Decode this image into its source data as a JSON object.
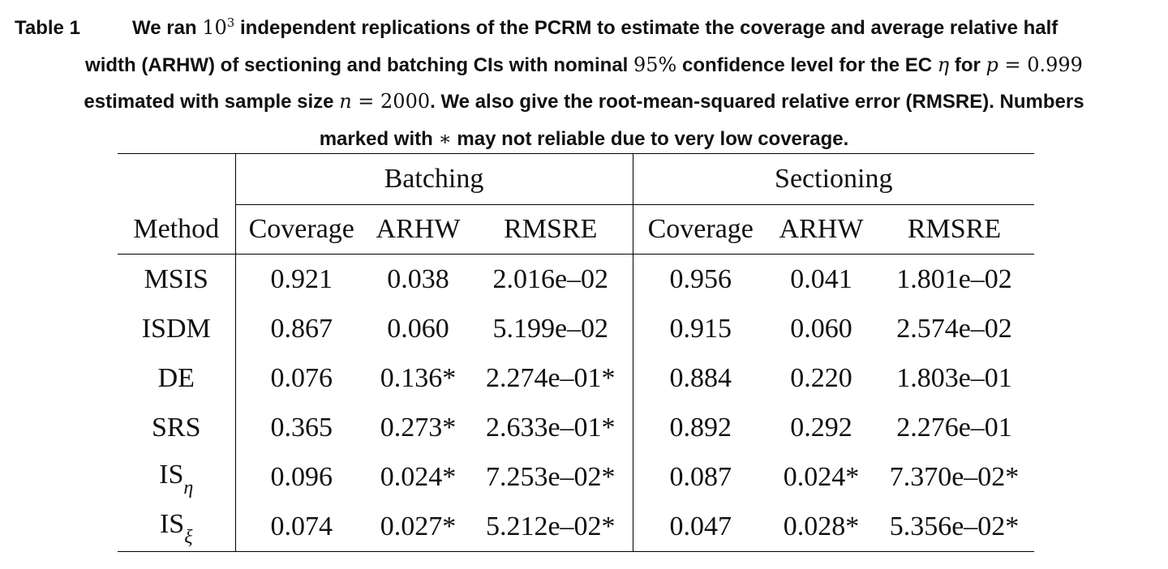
{
  "caption": {
    "label": "Table 1",
    "lines": [
      [
        {
          "t": "We ran ",
          "k": "b"
        },
        {
          "t": "10",
          "k": "m"
        },
        {
          "t": "3",
          "k": "sup"
        },
        {
          "t": " independent replications of the PCRM to estimate the coverage and average relative half",
          "k": "b"
        }
      ],
      [
        {
          "t": "width (ARHW) of sectioning and batching CIs with nominal ",
          "k": "b"
        },
        {
          "t": "95%",
          "k": "m"
        },
        {
          "t": " confidence level for the EC ",
          "k": "b"
        },
        {
          "t": "η",
          "k": "mi"
        },
        {
          "t": " for ",
          "k": "b"
        },
        {
          "t": "p",
          "k": "mi"
        },
        {
          "t": " = 0.999",
          "k": "m"
        }
      ],
      [
        {
          "t": "estimated with sample size ",
          "k": "b"
        },
        {
          "t": "n",
          "k": "mi"
        },
        {
          "t": " = 2000",
          "k": "m"
        },
        {
          "t": ". We also give the root-mean-squared relative error (RMSRE). Numbers",
          "k": "b"
        }
      ],
      [
        {
          "t": "marked with ",
          "k": "b"
        },
        {
          "t": "∗",
          "k": "m"
        },
        {
          "t": " may not reliable due to very low coverage.",
          "k": "b"
        }
      ]
    ]
  },
  "table": {
    "groups": [
      "Batching",
      "Sectioning"
    ],
    "method_header": "Method",
    "columns": [
      "Coverage",
      "ARHW",
      "RMSRE",
      "Coverage",
      "ARHW",
      "RMSRE"
    ],
    "rows": [
      {
        "method": "MSIS",
        "sub": "",
        "cells": [
          "0.921",
          "0.038",
          "2.016e–02",
          "0.956",
          "0.041",
          "1.801e–02"
        ]
      },
      {
        "method": "ISDM",
        "sub": "",
        "cells": [
          "0.867",
          "0.060",
          "5.199e–02",
          "0.915",
          "0.060",
          "2.574e–02"
        ]
      },
      {
        "method": "DE",
        "sub": "",
        "cells": [
          "0.076",
          "0.136*",
          "2.274e–01*",
          "0.884",
          "0.220",
          "1.803e–01"
        ]
      },
      {
        "method": "SRS",
        "sub": "",
        "cells": [
          "0.365",
          "0.273*",
          "2.633e–01*",
          "0.892",
          "0.292",
          "2.276e–01"
        ]
      },
      {
        "method": "IS",
        "sub": "η",
        "cells": [
          "0.096",
          "0.024*",
          "7.253e–02*",
          "0.087",
          "0.024*",
          "7.370e–02*"
        ]
      },
      {
        "method": "IS",
        "sub": "ξ",
        "cells": [
          "0.074",
          "0.027*",
          "5.212e–02*",
          "0.047",
          "0.028*",
          "5.356e–02*"
        ]
      }
    ]
  }
}
